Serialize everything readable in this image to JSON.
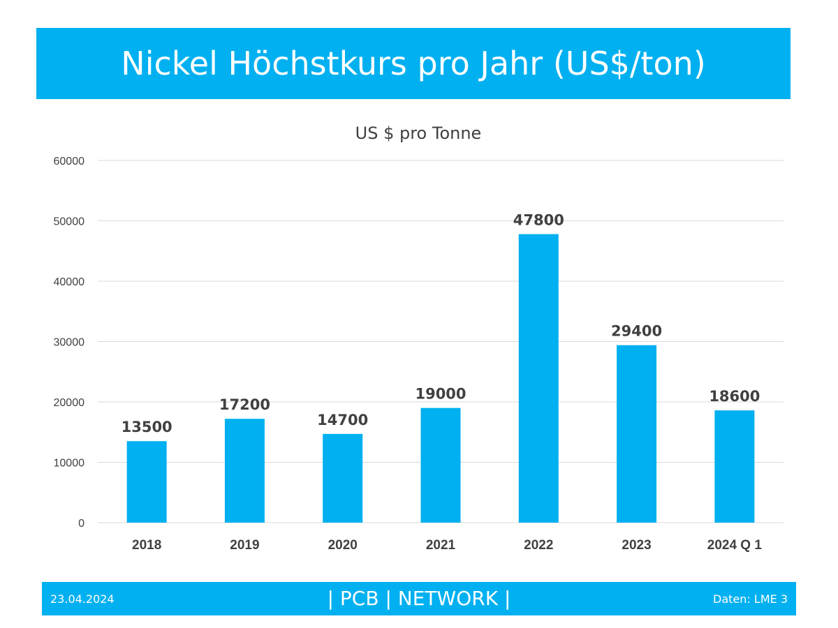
{
  "header": {
    "title": "Nickel Höchstkurs pro Jahr (US$/ton)"
  },
  "colors": {
    "accent": "#00b0f0",
    "text": "#404040",
    "grid": "#d9d9d9"
  },
  "chart_data": {
    "type": "bar",
    "title": "US $ pro Tonne",
    "categories": [
      "2018",
      "2019",
      "2020",
      "2021",
      "2022",
      "2023",
      "2024 Q 1"
    ],
    "values": [
      13500,
      17200,
      14700,
      19000,
      47800,
      29400,
      18600
    ],
    "ylim": [
      0,
      60000
    ],
    "yticks": [
      0,
      10000,
      20000,
      30000,
      40000,
      50000,
      60000
    ],
    "grid": true,
    "legend": "none",
    "data_labels": true
  },
  "footer": {
    "date": "23.04.2024",
    "center": "| PCB | NETWORK |",
    "source": "Daten: LME 3"
  }
}
